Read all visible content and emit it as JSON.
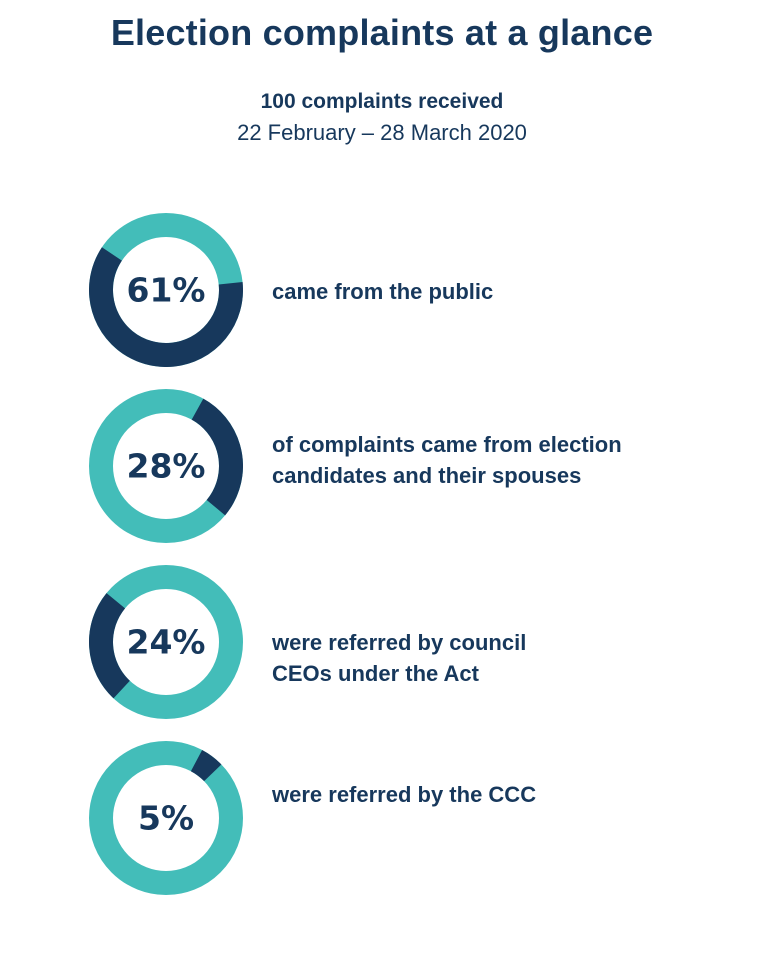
{
  "header": {
    "title": "Election complaints at a glance",
    "subtitle": "100 complaints received",
    "date_range": "22 February – 28 March 2020"
  },
  "colors": {
    "highlight": "#17385c",
    "remainder": "#43bdb9",
    "text": "#17385c"
  },
  "chart_data": [
    {
      "type": "pie",
      "label": "61%",
      "values": [
        61,
        39
      ],
      "description": [
        "came from the public"
      ]
    },
    {
      "type": "pie",
      "label": "28%",
      "values": [
        28,
        72
      ],
      "description": [
        "of complaints came from election",
        "candidates and their spouses"
      ]
    },
    {
      "type": "pie",
      "label": "24%",
      "values": [
        24,
        76
      ],
      "description": [
        "were referred by council",
        "CEOs under the Act"
      ]
    },
    {
      "type": "pie",
      "label": "5%",
      "values": [
        5,
        95
      ],
      "description": [
        "were referred by the CCC"
      ]
    }
  ]
}
